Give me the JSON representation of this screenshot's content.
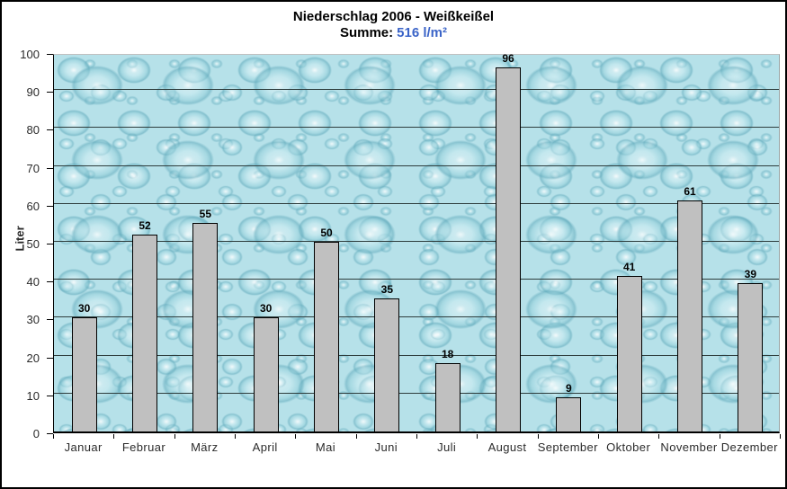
{
  "title": "Niederschlag 2006 - Weißkeißel",
  "subtitle": {
    "label": "Summe:",
    "value": "516 l/m²"
  },
  "chart_data": {
    "type": "bar",
    "title": "Niederschlag 2006 - Weißkeißel",
    "subtitle": "Summe: 516 l/m²",
    "categories": [
      "Januar",
      "Februar",
      "März",
      "April",
      "Mai",
      "Juni",
      "Juli",
      "August",
      "September",
      "Oktober",
      "November",
      "Dezember"
    ],
    "values": [
      30,
      52,
      55,
      30,
      50,
      35,
      18,
      96,
      9,
      41,
      61,
      39
    ],
    "xlabel": "",
    "ylabel": "Liter",
    "ylim": [
      0,
      100
    ],
    "ytick_step": 10,
    "grid": true,
    "legend": "none",
    "bar_color": "#c0c0c0",
    "bar_border_color": "#000000",
    "gridline_color": "#2e3d3d",
    "sum_value_color": "#3b64c8",
    "plot_background": "water-droplets texture, light cyan"
  }
}
